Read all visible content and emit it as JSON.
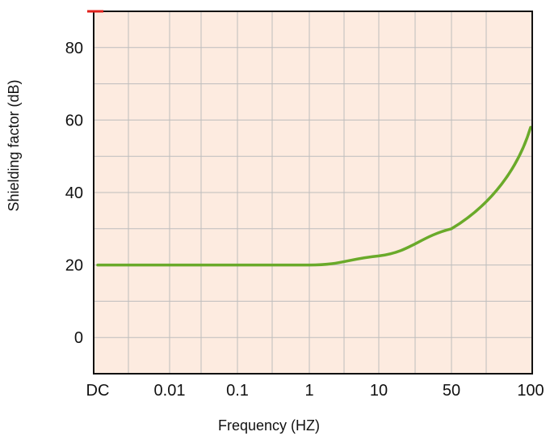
{
  "chart_data": {
    "type": "line",
    "title": "",
    "xlabel": "Frequency (HZ)",
    "ylabel": "Shielding factor (dB)",
    "x_tick_labels": [
      "DC",
      "0.01",
      "0.1",
      "1",
      "10",
      "50",
      "100"
    ],
    "y_tick_labels": [
      "0",
      "20",
      "40",
      "60",
      "80"
    ],
    "y_ticks": [
      0,
      20,
      40,
      60,
      80
    ],
    "ylim": [
      -10,
      90
    ],
    "grid": true,
    "colors": {
      "background": "#fdebe0",
      "grid": "#bdbdbd",
      "frame": "#111111",
      "line": "#6aaa2a",
      "accent_mark": "#e0201a"
    },
    "series": [
      {
        "x": [
          "DC",
          "0.01",
          "0.1",
          "1",
          "10",
          "50",
          "100"
        ],
        "values": [
          20,
          20,
          20,
          20,
          22.5,
          30,
          58
        ]
      }
    ]
  }
}
